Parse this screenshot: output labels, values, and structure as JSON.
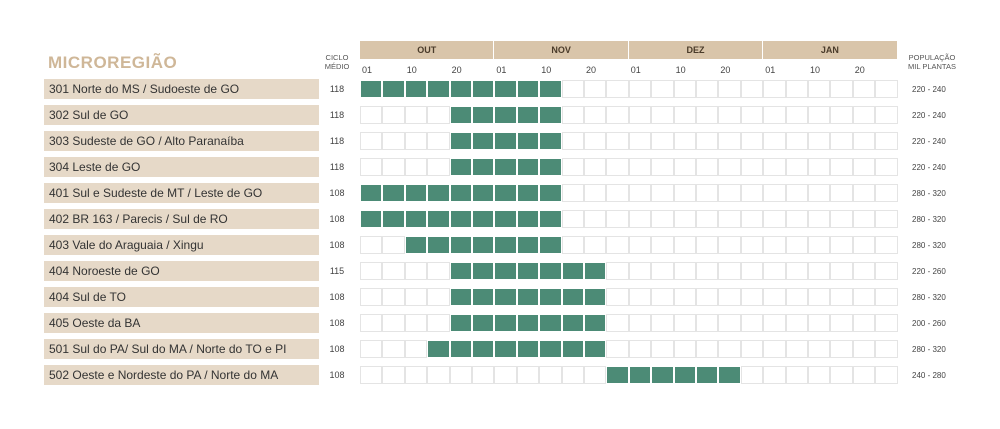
{
  "header": {
    "title": "MICROREGIÃO",
    "ciclo_line1": "CICLO",
    "ciclo_line2": "MÉDIO",
    "pop_line1": "POPULAÇÃO",
    "pop_line2": "MIL PLANTAS"
  },
  "colors": {
    "accent": "#4c8b76",
    "label_bg": "#e6d9c8",
    "month_bg": "#d9c5aa",
    "title": "#cfb798"
  },
  "chart_data": {
    "type": "table",
    "months": [
      "OUT",
      "NOV",
      "DEZ",
      "JAN"
    ],
    "ticks": [
      "01",
      "10",
      "20"
    ],
    "periods_per_month": 6,
    "rows": [
      {
        "label": "301 Norte do MS / Sudoeste de GO",
        "ciclo": "118",
        "populacao": "220 - 240",
        "active": [
          0,
          9
        ]
      },
      {
        "label": "302 Sul de GO",
        "ciclo": "118",
        "populacao": "220 - 240",
        "active": [
          4,
          9
        ]
      },
      {
        "label": "303 Sudeste de GO / Alto Paranaíba",
        "ciclo": "118",
        "populacao": "220 - 240",
        "active": [
          4,
          9
        ]
      },
      {
        "label": "304 Leste de GO",
        "ciclo": "118",
        "populacao": "220 - 240",
        "active": [
          4,
          9
        ]
      },
      {
        "label": "401 Sul e Sudeste de MT / Leste de GO",
        "ciclo": "108",
        "populacao": "280 - 320",
        "active": [
          0,
          9
        ]
      },
      {
        "label": "402 BR 163 / Parecis / Sul de RO",
        "ciclo": "108",
        "populacao": "280 - 320",
        "active": [
          0,
          9
        ]
      },
      {
        "label": "403 Vale do Araguaia / Xingu",
        "ciclo": "108",
        "populacao": "280 - 320",
        "active": [
          2,
          9
        ]
      },
      {
        "label": "404 Noroeste de GO",
        "ciclo": "115",
        "populacao": "220 - 260",
        "active": [
          4,
          11
        ]
      },
      {
        "label": "404 Sul de TO",
        "ciclo": "108",
        "populacao": "280 - 320",
        "active": [
          4,
          11
        ]
      },
      {
        "label": "405 Oeste da BA",
        "ciclo": "108",
        "populacao": "200 - 260",
        "active": [
          4,
          11
        ]
      },
      {
        "label": "501 Sul do PA/ Sul do MA / Norte do TO e PI",
        "ciclo": "108",
        "populacao": "280 - 320",
        "active": [
          3,
          11
        ]
      },
      {
        "label": "502 Oeste e Nordeste do PA / Norte do MA",
        "ciclo": "108",
        "populacao": "240 - 280",
        "active": [
          11,
          17
        ]
      }
    ]
  }
}
